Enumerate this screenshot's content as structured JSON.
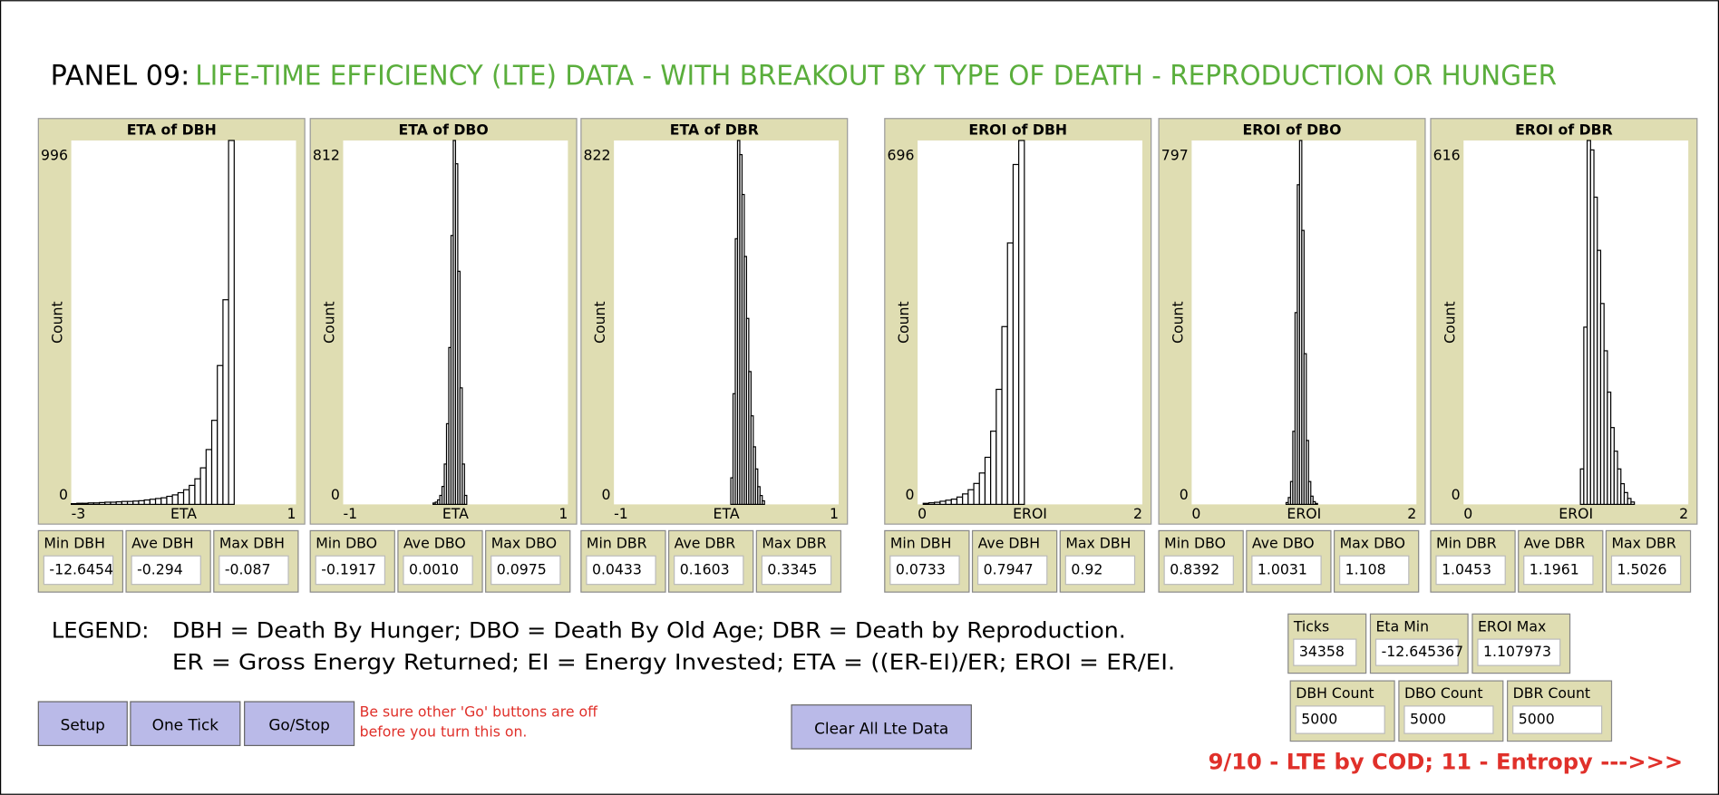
{
  "panel": {
    "label": "PANEL 09:",
    "title": "LIFE-TIME EFFICIENCY (LTE) DATA - WITH BREAKOUT  BY TYPE OF DEATH - REPRODUCTION OR HUNGER"
  },
  "plots": [
    {
      "type": "histogram",
      "title": "ETA of DBH",
      "xlabel": "ETA",
      "ylabel": "Count",
      "color": "#000000",
      "xlim": [
        -3,
        1
      ],
      "ylim": [
        0,
        996
      ],
      "xticks": [
        -3,
        1
      ],
      "yticks": [
        0,
        996
      ],
      "bins": [
        -3.0,
        -2.9,
        -2.8,
        -2.7,
        -2.6,
        -2.5,
        -2.4,
        -2.3,
        -2.2,
        -2.1,
        -2.0,
        -1.9,
        -1.8,
        -1.7,
        -1.6,
        -1.5,
        -1.4,
        -1.3,
        -1.2,
        -1.1,
        -1.0,
        -0.9,
        -0.8,
        -0.7,
        -0.6,
        -0.5,
        -0.4,
        -0.3,
        -0.2,
        -0.1
      ],
      "values": [
        2,
        3,
        3,
        4,
        4,
        5,
        6,
        6,
        7,
        8,
        8,
        9,
        10,
        12,
        14,
        16,
        18,
        22,
        26,
        32,
        40,
        52,
        70,
        100,
        150,
        230,
        380,
        560,
        996
      ],
      "monitors": [
        {
          "label": "Min DBH",
          "value": "-12.6454"
        },
        {
          "label": "Ave DBH",
          "value": "-0.294"
        },
        {
          "label": "Max DBH",
          "value": "-0.087"
        }
      ]
    },
    {
      "type": "histogram",
      "title": "ETA of DBO",
      "xlabel": "ETA",
      "ylabel": "Count",
      "color": "#000000",
      "xlim": [
        -1,
        1
      ],
      "ylim": [
        0,
        812
      ],
      "xticks": [
        -1,
        1
      ],
      "yticks": [
        0,
        812
      ],
      "bins": [
        -0.2,
        -0.18,
        -0.16,
        -0.14,
        -0.12,
        -0.1,
        -0.08,
        -0.06,
        -0.04,
        -0.02,
        0.0,
        0.02,
        0.04,
        0.06,
        0.08,
        0.1
      ],
      "values": [
        3,
        5,
        10,
        20,
        40,
        90,
        180,
        350,
        600,
        812,
        760,
        520,
        260,
        90,
        20
      ],
      "monitors": [
        {
          "label": "Min DBO",
          "value": "-0.1917"
        },
        {
          "label": "Ave DBO",
          "value": "0.0010"
        },
        {
          "label": "Max DBO",
          "value": "0.0975"
        }
      ]
    },
    {
      "type": "histogram",
      "title": "ETA of DBR",
      "xlabel": "ETA",
      "ylabel": "Count",
      "color": "#000000",
      "xlim": [
        -1,
        1
      ],
      "ylim": [
        0,
        822
      ],
      "xticks": [
        -1,
        1
      ],
      "yticks": [
        0,
        822
      ],
      "bins": [
        0.04,
        0.06,
        0.08,
        0.1,
        0.12,
        0.14,
        0.16,
        0.18,
        0.2,
        0.22,
        0.24,
        0.26,
        0.28,
        0.3,
        0.32,
        0.34
      ],
      "values": [
        60,
        250,
        600,
        822,
        790,
        700,
        560,
        420,
        300,
        200,
        130,
        80,
        40,
        20,
        8
      ],
      "monitors": [
        {
          "label": "Min DBR",
          "value": "0.0433"
        },
        {
          "label": "Ave DBR",
          "value": "0.1603"
        },
        {
          "label": "Max DBR",
          "value": "0.3345"
        }
      ]
    },
    {
      "type": "histogram",
      "title": "EROI of DBH",
      "xlabel": "EROI",
      "ylabel": "Count",
      "color": "#000000",
      "xlim": [
        0,
        2
      ],
      "ylim": [
        0,
        696
      ],
      "xticks": [
        0,
        2
      ],
      "yticks": [
        0,
        696
      ],
      "bins": [
        0.05,
        0.1,
        0.15,
        0.2,
        0.25,
        0.3,
        0.35,
        0.4,
        0.45,
        0.5,
        0.55,
        0.6,
        0.65,
        0.7,
        0.75,
        0.8,
        0.85,
        0.9,
        0.95
      ],
      "values": [
        2,
        3,
        4,
        6,
        8,
        10,
        14,
        20,
        28,
        40,
        60,
        90,
        140,
        220,
        340,
        500,
        650,
        696
      ],
      "monitors": [
        {
          "label": "Min DBH",
          "value": "0.0733"
        },
        {
          "label": "Ave DBH",
          "value": "0.7947"
        },
        {
          "label": "Max DBH",
          "value": "0.92"
        }
      ]
    },
    {
      "type": "histogram",
      "title": "EROI of DBO",
      "xlabel": "EROI",
      "ylabel": "Count",
      "color": "#000000",
      "xlim": [
        0,
        2
      ],
      "ylim": [
        0,
        797
      ],
      "xticks": [
        0,
        2
      ],
      "yticks": [
        0,
        797
      ],
      "bins": [
        0.84,
        0.86,
        0.88,
        0.9,
        0.92,
        0.94,
        0.96,
        0.98,
        1.0,
        1.02,
        1.04,
        1.06,
        1.08,
        1.1,
        1.12
      ],
      "values": [
        4,
        15,
        50,
        160,
        420,
        700,
        797,
        600,
        330,
        140,
        50,
        18,
        6,
        2
      ],
      "monitors": [
        {
          "label": "Min DBO",
          "value": "0.8392"
        },
        {
          "label": "Ave DBO",
          "value": "1.0031"
        },
        {
          "label": "Max DBO",
          "value": "1.108"
        }
      ]
    },
    {
      "type": "histogram",
      "title": "EROI of DBR",
      "xlabel": "EROI",
      "ylabel": "Count",
      "color": "#000000",
      "xlim": [
        0,
        2
      ],
      "ylim": [
        0,
        616
      ],
      "xticks": [
        0,
        2
      ],
      "yticks": [
        0,
        616
      ],
      "bins": [
        1.04,
        1.07,
        1.1,
        1.13,
        1.16,
        1.19,
        1.22,
        1.25,
        1.28,
        1.31,
        1.34,
        1.37,
        1.4,
        1.43,
        1.46,
        1.49,
        1.52
      ],
      "values": [
        60,
        300,
        616,
        600,
        520,
        430,
        340,
        260,
        190,
        130,
        90,
        60,
        35,
        20,
        10,
        4
      ],
      "monitors": [
        {
          "label": "Min DBR",
          "value": "1.0453"
        },
        {
          "label": "Ave DBR",
          "value": "1.1961"
        },
        {
          "label": "Max DBR",
          "value": "1.5026"
        }
      ]
    }
  ],
  "legend": {
    "label": "LEGEND:",
    "line1": "DBH = Death By Hunger; DBO = Death By Old Age; DBR = Death by Reproduction.",
    "line2": "ER = Gross Energy Returned; EI = Energy Invested; ETA = ((ER-EI)/ER; EROI = ER/EI."
  },
  "buttons": [
    "Setup",
    "One Tick",
    "Go/Stop",
    "Clear All Lte Data"
  ],
  "note": [
    "Be sure other 'Go' buttons are off",
    "before you turn this on."
  ],
  "monitors": [
    {
      "label": "Ticks",
      "value": "34358"
    },
    {
      "label": "Eta Min",
      "value": "-12.645367"
    },
    {
      "label": "EROI Max",
      "value": "1.107973"
    },
    {
      "label": "DBH Count",
      "value": "5000"
    },
    {
      "label": "DBO Count",
      "value": "5000"
    },
    {
      "label": "DBR Count",
      "value": "5000"
    }
  ],
  "footer": "9/10 - LTE by COD; 11 - Entropy --->>>"
}
